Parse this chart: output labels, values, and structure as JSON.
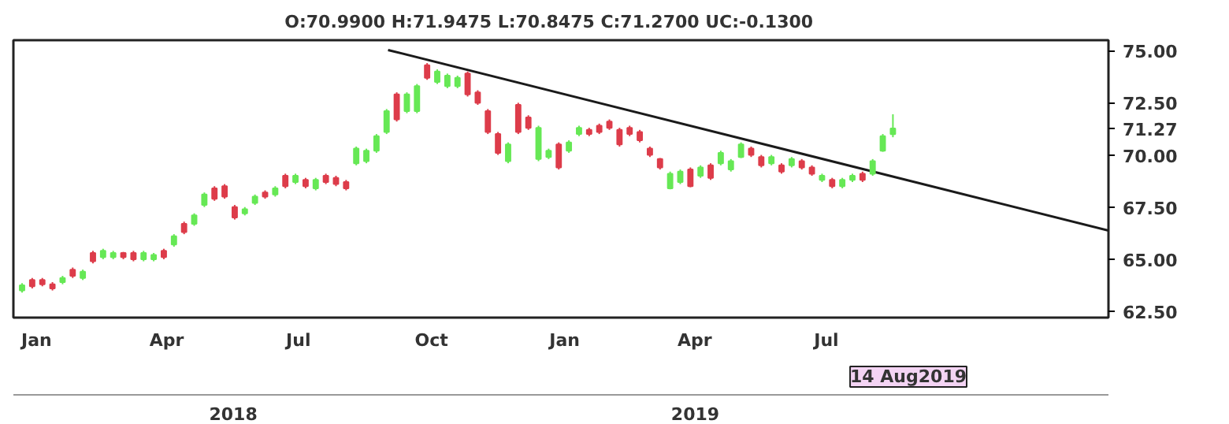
{
  "chart_data": {
    "type": "candlestick",
    "title": "O:70.9900  H:71.9475  L:70.8475  C:71.2700  UC:-0.1300",
    "x": [
      "2017-12-22",
      "2017-12-29",
      "2018-01-05",
      "2018-01-12",
      "2018-01-19",
      "2018-01-26",
      "2018-02-02",
      "2018-02-09",
      "2018-02-16",
      "2018-02-23",
      "2018-03-02",
      "2018-03-09",
      "2018-03-16",
      "2018-03-23",
      "2018-03-30",
      "2018-04-06",
      "2018-04-13",
      "2018-04-20",
      "2018-04-27",
      "2018-05-04",
      "2018-05-11",
      "2018-05-18",
      "2018-05-25",
      "2018-06-01",
      "2018-06-08",
      "2018-06-15",
      "2018-06-22",
      "2018-06-29",
      "2018-07-06",
      "2018-07-13",
      "2018-07-20",
      "2018-07-27",
      "2018-08-03",
      "2018-08-10",
      "2018-08-17",
      "2018-08-24",
      "2018-08-31",
      "2018-09-07",
      "2018-09-14",
      "2018-09-21",
      "2018-09-28",
      "2018-10-05",
      "2018-10-12",
      "2018-10-19",
      "2018-10-26",
      "2018-11-02",
      "2018-11-09",
      "2018-11-16",
      "2018-11-23",
      "2018-11-30",
      "2018-12-07",
      "2018-12-14",
      "2018-12-21",
      "2018-12-28",
      "2019-01-04",
      "2019-01-11",
      "2019-01-18",
      "2019-01-25",
      "2019-02-01",
      "2019-02-08",
      "2019-02-15",
      "2019-02-22",
      "2019-03-01",
      "2019-03-08",
      "2019-03-15",
      "2019-03-22",
      "2019-03-29",
      "2019-04-05",
      "2019-04-12",
      "2019-04-19",
      "2019-04-26",
      "2019-05-03",
      "2019-05-10",
      "2019-05-17",
      "2019-05-24",
      "2019-05-31",
      "2019-06-07",
      "2019-06-14",
      "2019-06-21",
      "2019-06-28",
      "2019-07-05",
      "2019-07-12",
      "2019-07-19",
      "2019-07-26",
      "2019-08-02",
      "2019-08-09",
      "2019-08-16"
    ],
    "ohlc": [
      [
        63.5,
        63.85,
        63.4,
        63.75
      ],
      [
        64.0,
        64.1,
        63.6,
        63.7
      ],
      [
        64.0,
        64.1,
        63.7,
        63.8
      ],
      [
        63.8,
        63.9,
        63.5,
        63.6
      ],
      [
        63.9,
        64.2,
        63.8,
        64.1
      ],
      [
        64.5,
        64.6,
        64.1,
        64.2
      ],
      [
        64.1,
        64.5,
        64.0,
        64.4
      ],
      [
        65.3,
        65.4,
        64.8,
        64.9
      ],
      [
        65.1,
        65.5,
        65.0,
        65.4
      ],
      [
        65.1,
        65.4,
        65.0,
        65.3
      ],
      [
        65.3,
        65.35,
        65.0,
        65.1
      ],
      [
        65.3,
        65.4,
        64.9,
        65.0
      ],
      [
        65.0,
        65.4,
        64.9,
        65.3
      ],
      [
        65.0,
        65.3,
        64.9,
        65.2
      ],
      [
        65.4,
        65.5,
        65.0,
        65.1
      ],
      [
        65.7,
        66.2,
        65.6,
        66.1
      ],
      [
        66.7,
        66.8,
        66.2,
        66.3
      ],
      [
        66.7,
        67.2,
        66.6,
        67.1
      ],
      [
        67.6,
        68.2,
        67.5,
        68.1
      ],
      [
        68.4,
        68.5,
        67.8,
        67.9
      ],
      [
        68.5,
        68.6,
        67.9,
        68.0
      ],
      [
        67.5,
        67.6,
        66.9,
        67.0
      ],
      [
        67.2,
        67.5,
        67.1,
        67.4
      ],
      [
        67.7,
        68.1,
        67.6,
        68.0
      ],
      [
        68.2,
        68.3,
        67.9,
        68.0
      ],
      [
        68.1,
        68.5,
        68.0,
        68.4
      ],
      [
        69.0,
        69.1,
        68.4,
        68.5
      ],
      [
        68.7,
        69.1,
        68.6,
        69.0
      ],
      [
        68.8,
        68.9,
        68.4,
        68.5
      ],
      [
        68.4,
        68.9,
        68.3,
        68.8
      ],
      [
        69.0,
        69.1,
        68.6,
        68.7
      ],
      [
        68.9,
        69.0,
        68.5,
        68.6
      ],
      [
        68.7,
        68.8,
        68.3,
        68.4
      ],
      [
        69.6,
        70.4,
        69.5,
        70.3
      ],
      [
        69.7,
        70.3,
        69.6,
        70.2
      ],
      [
        70.2,
        71.0,
        70.1,
        70.9
      ],
      [
        71.1,
        72.2,
        71.0,
        72.1
      ],
      [
        72.9,
        73.0,
        71.6,
        71.7
      ],
      [
        72.1,
        73.0,
        72.0,
        72.9
      ],
      [
        72.1,
        73.4,
        72.0,
        73.3
      ],
      [
        74.3,
        74.4,
        73.6,
        73.7
      ],
      [
        73.5,
        74.1,
        73.4,
        74.0
      ],
      [
        73.3,
        73.9,
        73.2,
        73.8
      ],
      [
        73.3,
        73.8,
        73.2,
        73.7
      ],
      [
        73.9,
        74.0,
        72.8,
        72.9
      ],
      [
        73.0,
        73.1,
        72.4,
        72.5
      ],
      [
        72.1,
        72.2,
        71.0,
        71.1
      ],
      [
        71.0,
        71.1,
        70.0,
        70.1
      ],
      [
        69.7,
        70.6,
        69.6,
        70.5
      ],
      [
        72.4,
        72.5,
        71.0,
        71.1
      ],
      [
        71.8,
        71.9,
        71.2,
        71.3
      ],
      [
        69.8,
        71.4,
        69.7,
        71.3
      ],
      [
        69.9,
        70.3,
        69.8,
        70.2
      ],
      [
        70.5,
        70.6,
        69.3,
        69.4
      ],
      [
        70.2,
        70.7,
        70.1,
        70.6
      ],
      [
        71.0,
        71.4,
        70.9,
        71.3
      ],
      [
        71.2,
        71.3,
        70.9,
        71.0
      ],
      [
        71.4,
        71.5,
        71.0,
        71.1
      ],
      [
        71.6,
        71.7,
        71.2,
        71.3
      ],
      [
        71.2,
        71.3,
        70.4,
        70.5
      ],
      [
        71.3,
        71.4,
        70.9,
        71.0
      ],
      [
        71.1,
        71.2,
        70.6,
        70.7
      ],
      [
        70.3,
        70.4,
        69.9,
        70.0
      ],
      [
        69.8,
        69.85,
        69.3,
        69.4
      ],
      [
        68.4,
        69.2,
        68.35,
        69.1
      ],
      [
        68.7,
        69.3,
        68.6,
        69.2
      ],
      [
        69.3,
        69.4,
        68.45,
        68.5
      ],
      [
        69.0,
        69.5,
        68.9,
        69.4
      ],
      [
        69.5,
        69.6,
        68.8,
        68.9
      ],
      [
        69.6,
        70.2,
        69.5,
        70.1
      ],
      [
        69.3,
        69.8,
        69.2,
        69.7
      ],
      [
        69.9,
        70.6,
        69.85,
        70.5
      ],
      [
        70.3,
        70.4,
        69.9,
        70.0
      ],
      [
        69.9,
        70.0,
        69.4,
        69.5
      ],
      [
        69.6,
        70.0,
        69.5,
        69.9
      ],
      [
        69.5,
        69.6,
        69.1,
        69.2
      ],
      [
        69.5,
        69.9,
        69.4,
        69.8
      ],
      [
        69.7,
        69.8,
        69.3,
        69.4
      ],
      [
        69.4,
        69.5,
        69.0,
        69.1
      ],
      [
        68.8,
        69.1,
        68.7,
        69.0
      ],
      [
        68.8,
        68.9,
        68.4,
        68.5
      ],
      [
        68.5,
        68.9,
        68.4,
        68.8
      ],
      [
        68.8,
        69.1,
        68.7,
        69.0
      ],
      [
        69.1,
        69.2,
        68.7,
        68.8
      ],
      [
        69.1,
        69.8,
        69.0,
        69.7
      ],
      [
        70.2,
        71.0,
        70.15,
        70.9
      ],
      [
        70.99,
        71.9475,
        70.8475,
        71.27
      ]
    ],
    "colors": [
      "#66e855",
      "#dd3c4a",
      "#dd3c4a",
      "#dd3c4a",
      "#66e855",
      "#dd3c4a",
      "#66e855",
      "#dd3c4a",
      "#66e855",
      "#66e855",
      "#dd3c4a",
      "#dd3c4a",
      "#66e855",
      "#66e855",
      "#dd3c4a",
      "#66e855",
      "#dd3c4a",
      "#66e855",
      "#66e855",
      "#dd3c4a",
      "#dd3c4a",
      "#dd3c4a",
      "#66e855",
      "#66e855",
      "#dd3c4a",
      "#66e855",
      "#dd3c4a",
      "#66e855",
      "#dd3c4a",
      "#66e855",
      "#dd3c4a",
      "#dd3c4a",
      "#dd3c4a",
      "#66e855",
      "#66e855",
      "#66e855",
      "#66e855",
      "#dd3c4a",
      "#66e855",
      "#66e855",
      "#dd3c4a",
      "#66e855",
      "#66e855",
      "#66e855",
      "#dd3c4a",
      "#dd3c4a",
      "#dd3c4a",
      "#dd3c4a",
      "#66e855",
      "#dd3c4a",
      "#dd3c4a",
      "#66e855",
      "#66e855",
      "#dd3c4a",
      "#66e855",
      "#66e855",
      "#dd3c4a",
      "#dd3c4a",
      "#dd3c4a",
      "#dd3c4a",
      "#dd3c4a",
      "#dd3c4a",
      "#dd3c4a",
      "#dd3c4a",
      "#66e855",
      "#66e855",
      "#dd3c4a",
      "#66e855",
      "#dd3c4a",
      "#66e855",
      "#66e855",
      "#66e855",
      "#dd3c4a",
      "#dd3c4a",
      "#66e855",
      "#dd3c4a",
      "#66e855",
      "#dd3c4a",
      "#dd3c4a",
      "#66e855",
      "#dd3c4a",
      "#66e855",
      "#66e855",
      "#dd3c4a",
      "#66e855",
      "#66e855",
      "#66e855"
    ],
    "series": [
      {
        "type": "line",
        "color": "#1a1a1a",
        "x": [
          "2018-09-01",
          "2020-01-12"
        ],
        "values": [
          75.03,
          66.37
        ]
      }
    ],
    "xlim": [
      "2017-12-16",
      "2020-01-12"
    ],
    "xticks": [
      {
        "value": "2018-01-01",
        "label": "Jan"
      },
      {
        "value": "2018-04-01",
        "label": "Apr"
      },
      {
        "value": "2018-07-01",
        "label": "Jul"
      },
      {
        "value": "2018-10-01",
        "label": "Oct"
      },
      {
        "value": "2019-01-01",
        "label": "Jan"
      },
      {
        "value": "2019-04-01",
        "label": "Apr"
      },
      {
        "value": "2019-07-01",
        "label": "Jul"
      }
    ],
    "ylim": [
      62.2,
      75.5
    ],
    "yticks": [
      {
        "value": 62.5,
        "label": "62.50"
      },
      {
        "value": 65,
        "label": "65.00"
      },
      {
        "value": 67.5,
        "label": "67.50"
      },
      {
        "value": 70,
        "label": "70.00"
      },
      {
        "value": 71.27,
        "label": "71.27"
      },
      {
        "value": 72.5,
        "label": "72.50"
      },
      {
        "value": 75,
        "label": "75.00"
      }
    ],
    "annotations": [
      "2018",
      "2019",
      "14 Aug2019"
    ]
  }
}
